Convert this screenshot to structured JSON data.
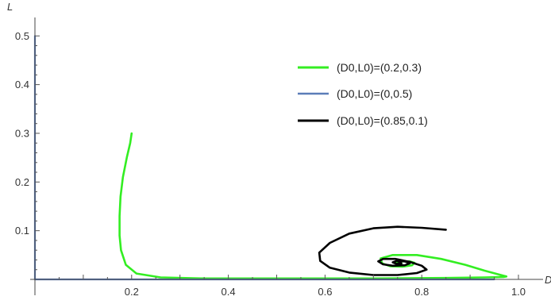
{
  "chart_data": {
    "type": "line",
    "xlabel": "D",
    "ylabel": "L",
    "xlim": [
      0,
      1.0
    ],
    "ylim": [
      0,
      0.52
    ],
    "x_ticks": [
      {
        "value": 0.2,
        "label": "0.2"
      },
      {
        "value": 0.4,
        "label": "0.4"
      },
      {
        "value": 0.6,
        "label": "0.6"
      },
      {
        "value": 0.8,
        "label": "0.8"
      },
      {
        "value": 1.0,
        "label": "1.0"
      }
    ],
    "y_ticks": [
      {
        "value": 0.1,
        "label": "0.1"
      },
      {
        "value": 0.2,
        "label": "0.2"
      },
      {
        "value": 0.3,
        "label": "0.3"
      },
      {
        "value": 0.4,
        "label": "0.4"
      },
      {
        "value": 0.5,
        "label": "0.5"
      }
    ],
    "grid": false,
    "legend_position": "top-right",
    "series": [
      {
        "name": "(D0,L0)=(0.2,0.3)",
        "color": "#33ee22",
        "points": [
          [
            0.2,
            0.3
          ],
          [
            0.197,
            0.28
          ],
          [
            0.19,
            0.25
          ],
          [
            0.182,
            0.21
          ],
          [
            0.177,
            0.17
          ],
          [
            0.175,
            0.13
          ],
          [
            0.175,
            0.09
          ],
          [
            0.178,
            0.06
          ],
          [
            0.188,
            0.03
          ],
          [
            0.21,
            0.012
          ],
          [
            0.26,
            0.004
          ],
          [
            0.35,
            0.002
          ],
          [
            0.5,
            0.002
          ],
          [
            0.7,
            0.002
          ],
          [
            0.85,
            0.003
          ],
          [
            0.93,
            0.004
          ],
          [
            0.97,
            0.005
          ],
          [
            0.975,
            0.006
          ],
          [
            0.96,
            0.01
          ],
          [
            0.93,
            0.018
          ],
          [
            0.89,
            0.03
          ],
          [
            0.84,
            0.042
          ],
          [
            0.79,
            0.05
          ],
          [
            0.74,
            0.05
          ],
          [
            0.715,
            0.043
          ],
          [
            0.718,
            0.033
          ],
          [
            0.735,
            0.027
          ],
          [
            0.76,
            0.026
          ],
          [
            0.78,
            0.029
          ],
          [
            0.785,
            0.034
          ],
          [
            0.775,
            0.037
          ],
          [
            0.76,
            0.037
          ],
          [
            0.748,
            0.035
          ],
          [
            0.745,
            0.033
          ],
          [
            0.752,
            0.031
          ],
          [
            0.758,
            0.032
          ],
          [
            0.755,
            0.033
          ],
          [
            0.752,
            0.033
          ]
        ]
      },
      {
        "name": "(D0,L0)=(0,0.5)",
        "color": "#5b7db8",
        "points": [
          [
            0.0,
            0.5
          ],
          [
            0.0,
            0.0
          ],
          [
            0.5,
            0.0
          ],
          [
            0.95,
            0.0
          ]
        ]
      },
      {
        "name": "(D0,L0)=(0.85,0.1)",
        "color": "#000000",
        "points": [
          [
            0.85,
            0.102
          ],
          [
            0.8,
            0.106
          ],
          [
            0.75,
            0.108
          ],
          [
            0.7,
            0.105
          ],
          [
            0.65,
            0.094
          ],
          [
            0.61,
            0.075
          ],
          [
            0.588,
            0.055
          ],
          [
            0.59,
            0.038
          ],
          [
            0.61,
            0.024
          ],
          [
            0.65,
            0.014
          ],
          [
            0.7,
            0.009
          ],
          [
            0.75,
            0.009
          ],
          [
            0.79,
            0.013
          ],
          [
            0.81,
            0.02
          ],
          [
            0.8,
            0.028
          ],
          [
            0.775,
            0.036
          ],
          [
            0.745,
            0.042
          ],
          [
            0.72,
            0.042
          ],
          [
            0.71,
            0.037
          ],
          [
            0.72,
            0.031
          ],
          [
            0.74,
            0.028
          ],
          [
            0.765,
            0.029
          ],
          [
            0.775,
            0.033
          ],
          [
            0.765,
            0.037
          ],
          [
            0.748,
            0.038
          ],
          [
            0.74,
            0.035
          ],
          [
            0.748,
            0.032
          ],
          [
            0.758,
            0.033
          ],
          [
            0.754,
            0.034
          ],
          [
            0.751,
            0.033
          ]
        ]
      }
    ]
  }
}
